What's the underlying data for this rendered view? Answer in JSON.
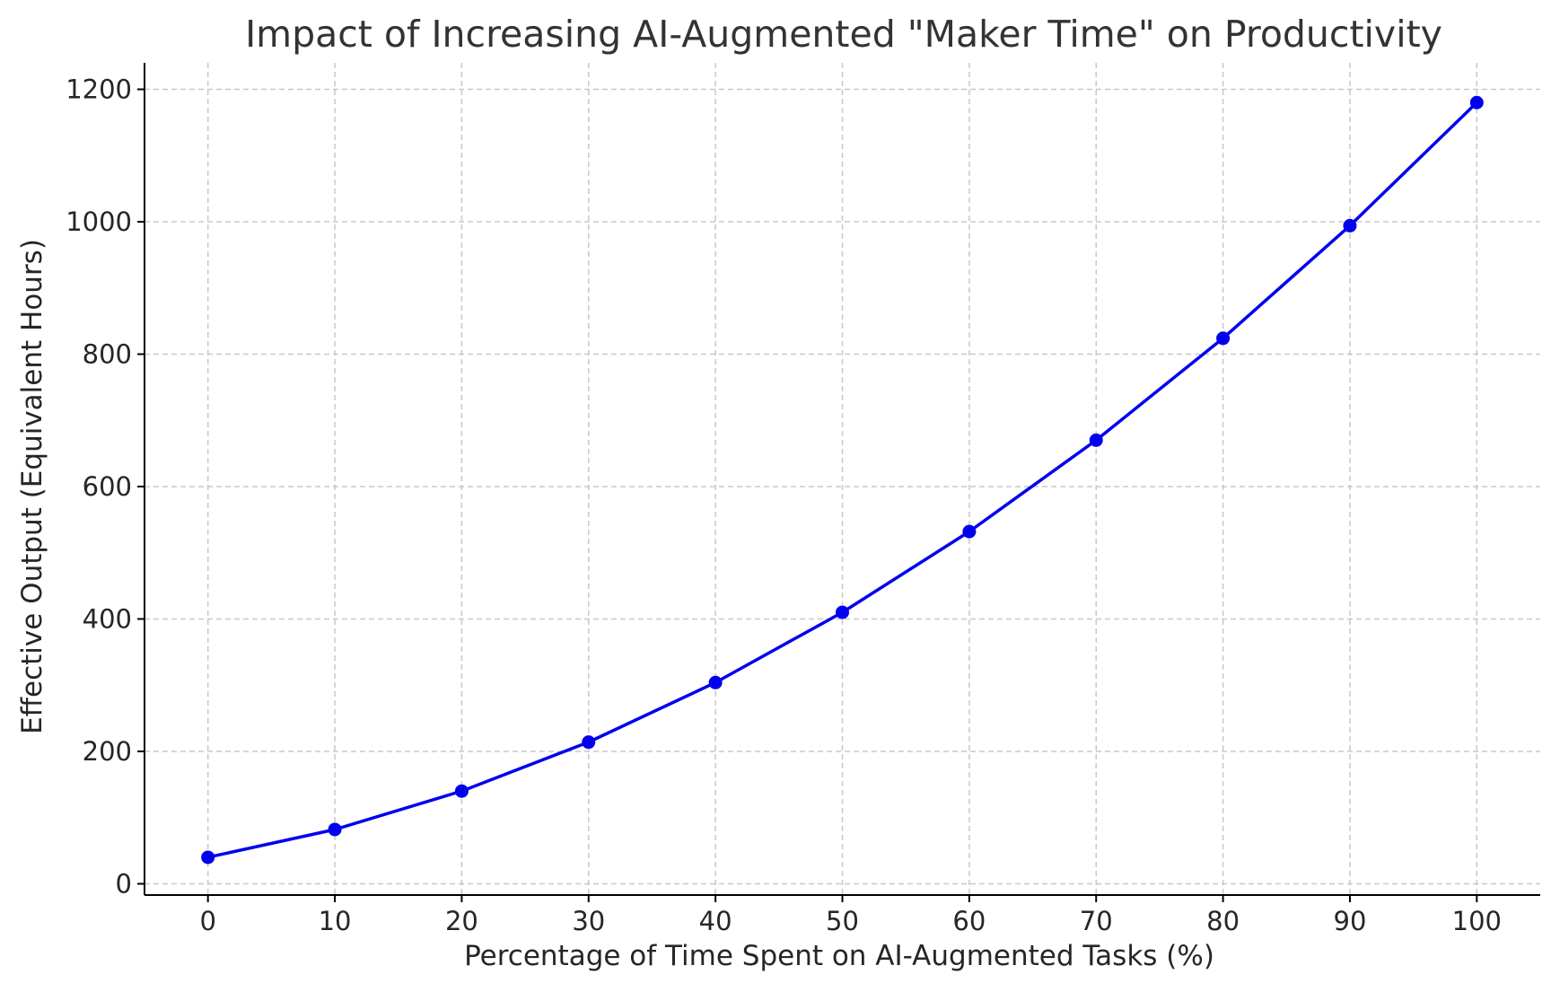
{
  "chart_data": {
    "type": "line",
    "title": "Impact of Increasing AI-Augmented \"Maker Time\" on Productivity",
    "xlabel": "Percentage of Time Spent on AI-Augmented Tasks (%)",
    "ylabel": "Effective Output (Equivalent Hours)",
    "x": [
      0,
      10,
      20,
      30,
      40,
      50,
      60,
      70,
      80,
      90,
      100
    ],
    "series": [
      {
        "values": [
          40,
          82,
          140,
          214,
          304,
          410,
          532,
          670,
          824,
          994,
          1180
        ],
        "color": "#0000ee",
        "marker": "circle"
      }
    ],
    "xticks": [
      0,
      10,
      20,
      30,
      40,
      50,
      60,
      70,
      80,
      90,
      100
    ],
    "yticks": [
      0,
      200,
      400,
      600,
      800,
      1000,
      1200
    ],
    "xlim": [
      -5,
      105
    ],
    "ylim": [
      -17,
      1240
    ],
    "grid": true,
    "legend": "none"
  }
}
